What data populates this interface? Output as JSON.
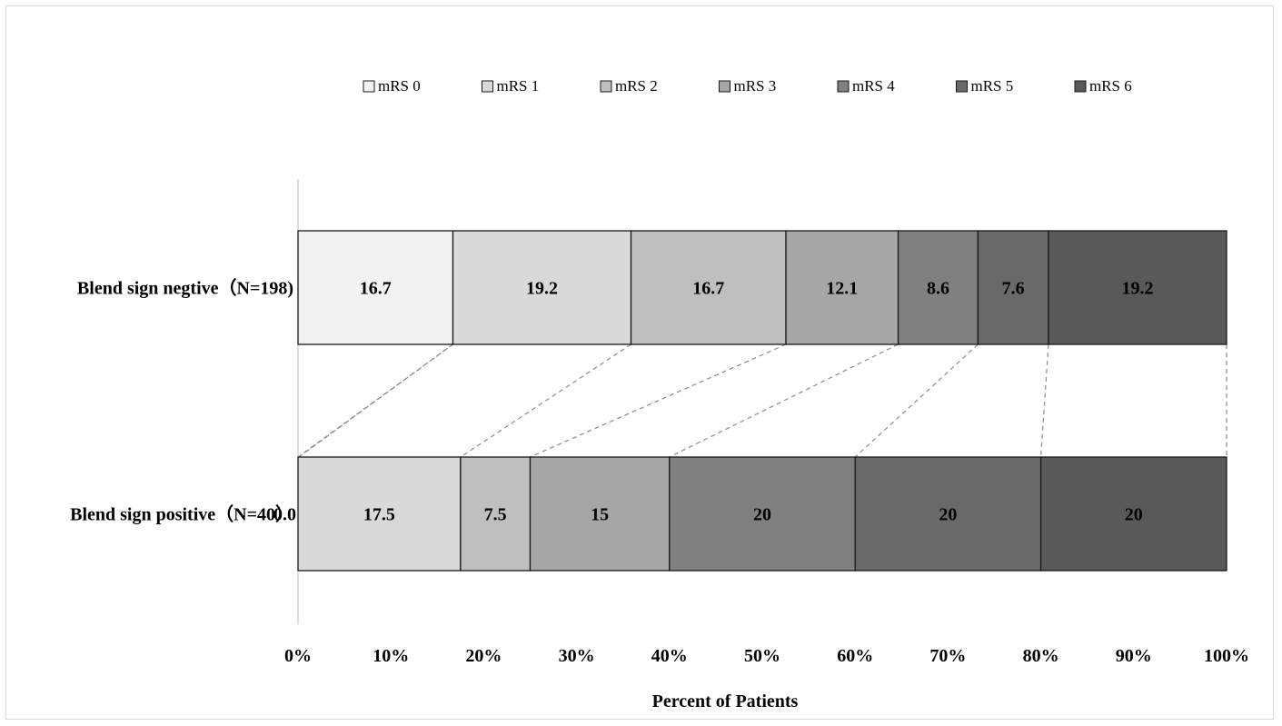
{
  "chart_data": {
    "type": "bar",
    "orientation": "horizontal",
    "stacked": "percent",
    "title": "",
    "xlabel": "Percent of Patients",
    "ylabel": "",
    "xlim": [
      0,
      100
    ],
    "x_ticks": [
      "0%",
      "10%",
      "20%",
      "30%",
      "40%",
      "50%",
      "60%",
      "70%",
      "80%",
      "90%",
      "100%"
    ],
    "grid": false,
    "legend_position": "top",
    "categories": [
      "Blend sign negtive（N=198)",
      "Blend sign positive（N=40）"
    ],
    "series": [
      {
        "name": "mRS 0",
        "color": "#f2f2f2",
        "values": [
          16.7,
          0.0
        ],
        "labels": [
          "16.7",
          "0.0"
        ]
      },
      {
        "name": "mRS 1",
        "color": "#d9d9d9",
        "values": [
          19.2,
          17.5
        ],
        "labels": [
          "19.2",
          "17.5"
        ]
      },
      {
        "name": "mRS 2",
        "color": "#bfbfbf",
        "values": [
          16.7,
          7.5
        ],
        "labels": [
          "16.7",
          "7.5"
        ]
      },
      {
        "name": "mRS 3",
        "color": "#a6a6a6",
        "values": [
          12.1,
          15
        ],
        "labels": [
          "12.1",
          "15"
        ]
      },
      {
        "name": "mRS 4",
        "color": "#808080",
        "values": [
          8.6,
          20
        ],
        "labels": [
          "8.6",
          "20"
        ]
      },
      {
        "name": "mRS 5",
        "color": "#696969",
        "values": [
          7.6,
          20
        ],
        "labels": [
          "7.6",
          "20"
        ]
      },
      {
        "name": "mRS 6",
        "color": "#595959",
        "values": [
          19.2,
          20
        ],
        "labels": [
          "19.2",
          "20"
        ]
      }
    ],
    "connectors": "dashed",
    "outline_color": "#1a1a1a",
    "axis_color": "#bfbfbf"
  }
}
